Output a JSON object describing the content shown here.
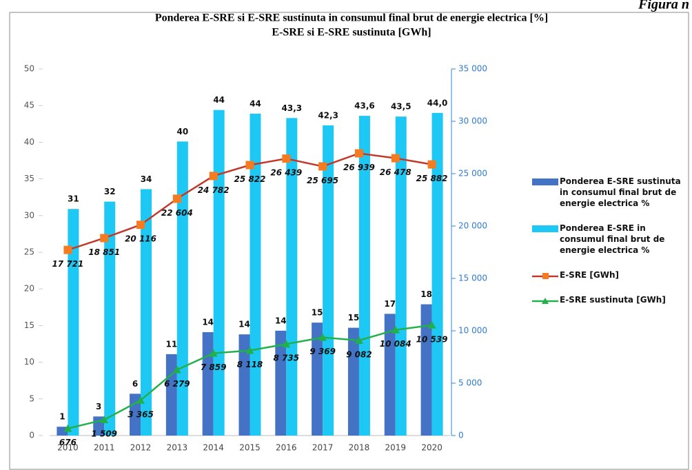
{
  "chart_data": {
    "type": "bar-line",
    "title": "Ponderea E-SRE si E-SRE sustinuta in consumul final brut de energie electrica [%]",
    "subtitle": "E-SRE si E-SRE sustinuta [GWh]",
    "annotation": "Figura n",
    "categories": [
      "2010",
      "2011",
      "2012",
      "2013",
      "2014",
      "2015",
      "2016",
      "2017",
      "2018",
      "2019",
      "2020"
    ],
    "series": [
      {
        "name": "Ponderea E-SRE sustinuta  in consumul final brut de energie electrica %",
        "type": "bar",
        "color": "#4472c4",
        "values": [
          1.2,
          2.6,
          5.7,
          11.1,
          14.1,
          13.8,
          14.3,
          15.4,
          14.7,
          16.6,
          17.9
        ],
        "value_labels": [
          "1",
          "3",
          "6",
          "11",
          "14",
          "14",
          "14",
          "15",
          "15",
          "17",
          "18"
        ]
      },
      {
        "name": "Ponderea E-SRE in consumul final brut de energie electrica %",
        "type": "bar",
        "color": "#1ec8f5",
        "values": [
          30.9,
          31.9,
          33.6,
          40.1,
          44.4,
          43.9,
          43.3,
          42.3,
          43.6,
          43.5,
          44.0
        ],
        "value_labels": [
          "31",
          "32",
          "34",
          "40",
          "44",
          "44",
          "43,3",
          "42,3",
          "43,6",
          "43,5",
          "44,0"
        ]
      },
      {
        "name": "E-SRE [GWh]",
        "type": "line",
        "axis": "y2",
        "color": "#c0392b",
        "marker_color": "#f47b20",
        "marker": "square",
        "values": [
          17721,
          18851,
          20116,
          22604,
          24782,
          25822,
          26439,
          25695,
          26939,
          26478,
          25882
        ],
        "value_labels": [
          "17 721",
          "18 851",
          "20 116",
          "22 604",
          "24 782",
          "25 822",
          "26 439",
          "25 695",
          "26 939",
          "26 478",
          "25 882"
        ]
      },
      {
        "name": "E-SRE sustinuta [GWh]",
        "type": "line",
        "axis": "y2",
        "color": "#22b04b",
        "marker_color": "#22b04b",
        "marker": "triangle",
        "values": [
          676,
          1509,
          3365,
          6279,
          7859,
          8118,
          8735,
          9369,
          9082,
          10084,
          10539
        ],
        "value_labels": [
          "676",
          "1 509",
          "3 365",
          "6 279",
          "7 859",
          "8 118",
          "8 735",
          "9 369",
          "9 082",
          "10 084",
          "10 539"
        ]
      }
    ],
    "ylim": [
      0,
      50
    ],
    "yticks": [
      0,
      5,
      10,
      15,
      20,
      25,
      30,
      35,
      40,
      45,
      50
    ],
    "y2lim": [
      0,
      35000
    ],
    "y2ticks": [
      0,
      {
        "value": 5000,
        "label": "5 000"
      },
      {
        "value": 10000,
        "label": "10 000"
      },
      {
        "value": 15000,
        "label": "15 000"
      },
      {
        "value": 20000,
        "label": "20 000"
      },
      {
        "value": 25000,
        "label": "25 000"
      },
      {
        "value": 30000,
        "label": "30 000"
      },
      {
        "value": 35000,
        "label": "35 000"
      }
    ],
    "legend": "right"
  }
}
